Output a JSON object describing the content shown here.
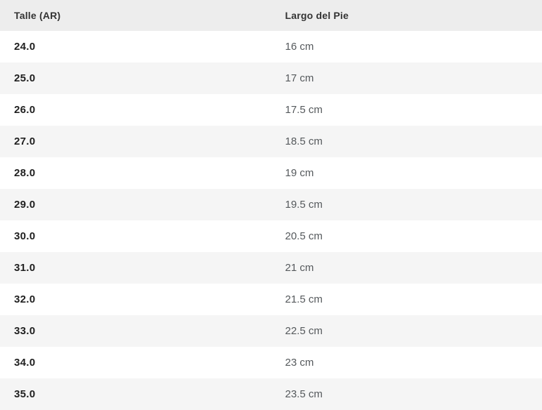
{
  "table": {
    "columns": [
      "Talle (AR)",
      "Largo del Pie"
    ],
    "rows": [
      [
        "24.0",
        "16 cm"
      ],
      [
        "25.0",
        "17 cm"
      ],
      [
        "26.0",
        "17.5 cm"
      ],
      [
        "27.0",
        "18.5 cm"
      ],
      [
        "28.0",
        "19 cm"
      ],
      [
        "29.0",
        "19.5 cm"
      ],
      [
        "30.0",
        "20.5 cm"
      ],
      [
        "31.0",
        "21 cm"
      ],
      [
        "32.0",
        "21.5 cm"
      ],
      [
        "33.0",
        "22.5 cm"
      ],
      [
        "34.0",
        "23 cm"
      ],
      [
        "35.0",
        "23.5 cm"
      ]
    ],
    "colors": {
      "header_bg": "#ededed",
      "row_bg": "#ffffff",
      "row_alt_bg": "#f5f5f5",
      "size_text": "#1f1f1f",
      "length_text": "#55595c",
      "header_text": "#333333"
    }
  }
}
